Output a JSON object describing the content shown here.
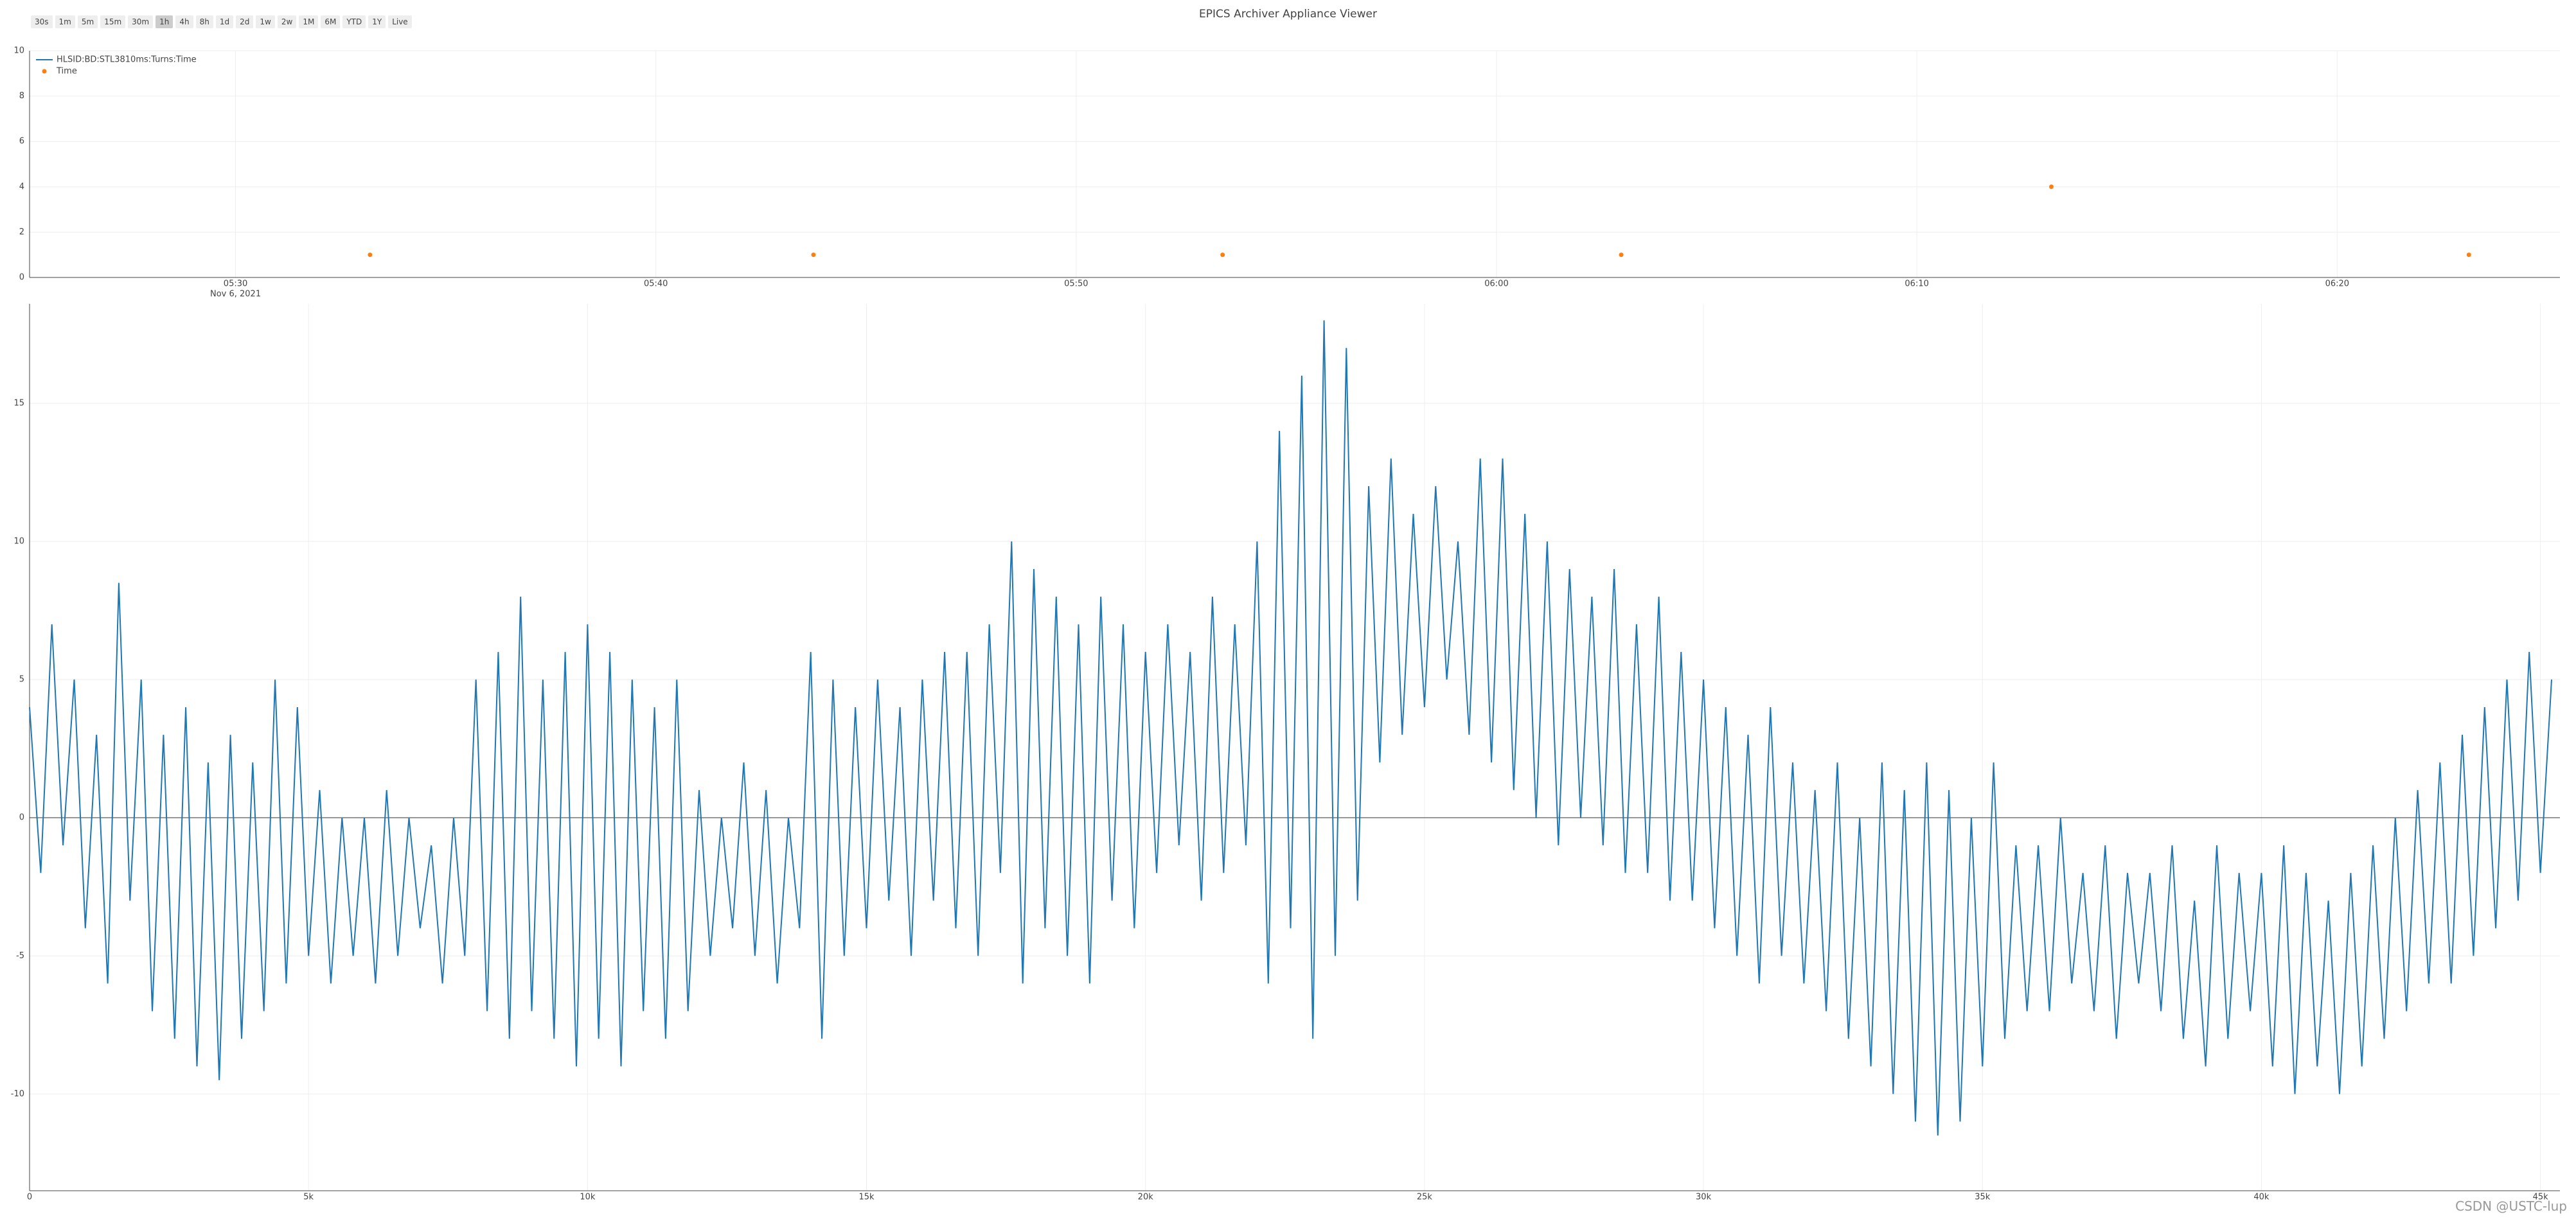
{
  "title": "EPICS Archiver Appliance Viewer",
  "toolbar": {
    "buttons": [
      "30s",
      "1m",
      "5m",
      "15m",
      "30m",
      "1h",
      "4h",
      "8h",
      "1d",
      "2d",
      "1w",
      "2w",
      "1M",
      "6M",
      "YTD",
      "1Y",
      "Live"
    ],
    "selected": "1h"
  },
  "watermark": "CSDN @USTC-lup",
  "chart_data": [
    {
      "type": "scatter",
      "legend": "top-left",
      "grid": true,
      "xlim": [
        "05:25:06",
        "06:25:18"
      ],
      "xticks": [
        "05:30",
        "05:40",
        "05:50",
        "06:00",
        "06:10",
        "06:20"
      ],
      "date_label": "Nov 6, 2021",
      "ylim": [
        0,
        10
      ],
      "yticks": [
        0,
        2,
        4,
        6,
        8,
        10
      ],
      "series": [
        {
          "name": "Time",
          "color": "#ff7f0e",
          "x": [
            "05:33:12",
            "05:43:45",
            "05:53:29",
            "06:02:58",
            "06:13:12",
            "06:23:08"
          ],
          "values": [
            1,
            1,
            1,
            1,
            4,
            1
          ]
        }
      ]
    },
    {
      "type": "line",
      "grid": true,
      "zeroline": true,
      "xlim": [
        0,
        45350
      ],
      "xticks": [
        0,
        {
          "value": 5000,
          "label": "5k"
        },
        {
          "value": 10000,
          "label": "10k"
        },
        {
          "value": 15000,
          "label": "15k"
        },
        {
          "value": 20000,
          "label": "20k"
        },
        {
          "value": 25000,
          "label": "25k"
        },
        {
          "value": 30000,
          "label": "30k"
        },
        {
          "value": 35000,
          "label": "35k"
        },
        {
          "value": 40000,
          "label": "40k"
        },
        {
          "value": 45000,
          "label": "45k"
        }
      ],
      "ylim": [
        -13.5,
        18.6
      ],
      "yticks": [
        -10,
        -5,
        0,
        5,
        10,
        15
      ],
      "series": [
        {
          "name": "HLSID:BD:STL3810ms:Turns:Time",
          "color": "#1f77b4",
          "x": [
            0,
            200,
            400,
            600,
            800,
            1000,
            1200,
            1400,
            1600,
            1800,
            2000,
            2200,
            2400,
            2600,
            2800,
            3000,
            3200,
            3400,
            3600,
            3800,
            4000,
            4200,
            4400,
            4600,
            4800,
            5000,
            5200,
            5400,
            5600,
            5800,
            6000,
            6200,
            6400,
            6600,
            6800,
            7000,
            7200,
            7400,
            7600,
            7800,
            8000,
            8200,
            8400,
            8600,
            8800,
            9000,
            9200,
            9400,
            9600,
            9800,
            10000,
            10200,
            10400,
            10600,
            10800,
            11000,
            11200,
            11400,
            11600,
            11800,
            12000,
            12200,
            12400,
            12600,
            12800,
            13000,
            13200,
            13400,
            13600,
            13800,
            14000,
            14200,
            14400,
            14600,
            14800,
            15000,
            15200,
            15400,
            15600,
            15800,
            16000,
            16200,
            16400,
            16600,
            16800,
            17000,
            17200,
            17400,
            17600,
            17800,
            18000,
            18200,
            18400,
            18600,
            18800,
            19000,
            19200,
            19400,
            19600,
            19800,
            20000,
            20200,
            20400,
            20600,
            20800,
            21000,
            21200,
            21400,
            21600,
            21800,
            22000,
            22200,
            22400,
            22600,
            22800,
            23000,
            23200,
            23400,
            23600,
            23800,
            24000,
            24200,
            24400,
            24600,
            24800,
            25000,
            25200,
            25400,
            25600,
            25800,
            26000,
            26200,
            26400,
            26600,
            26800,
            27000,
            27200,
            27400,
            27600,
            27800,
            28000,
            28200,
            28400,
            28600,
            28800,
            29000,
            29200,
            29400,
            29600,
            29800,
            30000,
            30200,
            30400,
            30600,
            30800,
            31000,
            31200,
            31400,
            31600,
            31800,
            32000,
            32200,
            32400,
            32600,
            32800,
            33000,
            33200,
            33400,
            33600,
            33800,
            34000,
            34200,
            34400,
            34600,
            34800,
            35000,
            35200,
            35400,
            35600,
            35800,
            36000,
            36200,
            36400,
            36600,
            36800,
            37000,
            37200,
            37400,
            37600,
            37800,
            38000,
            38200,
            38400,
            38600,
            38800,
            39000,
            39200,
            39400,
            39600,
            39800,
            40000,
            40200,
            40400,
            40600,
            40800,
            41000,
            41200,
            41400,
            41600,
            41800,
            42000,
            42200,
            42400,
            42600,
            42800,
            43000,
            43200,
            43400,
            43600,
            43800,
            44000,
            44200,
            44400,
            44600,
            44800,
            45000,
            45200
          ],
          "values": [
            4,
            -2,
            7,
            -1,
            5,
            -4,
            3,
            -6,
            8.5,
            -3,
            5,
            -7,
            3,
            -8,
            4,
            -9,
            2,
            -9.5,
            3,
            -8,
            2,
            -7,
            5,
            -6,
            4,
            -5,
            1,
            -6,
            0,
            -5,
            0,
            -6,
            1,
            -5,
            0,
            -4,
            -1,
            -6,
            0,
            -5,
            5,
            -7,
            6,
            -8,
            8,
            -7,
            5,
            -8,
            6,
            -9,
            7,
            -8,
            6,
            -9,
            5,
            -7,
            4,
            -8,
            5,
            -7,
            1,
            -5,
            0,
            -4,
            2,
            -5,
            1,
            -6,
            0,
            -4,
            6,
            -8,
            5,
            -5,
            4,
            -4,
            5,
            -3,
            4,
            -5,
            5,
            -3,
            6,
            -4,
            6,
            -5,
            7,
            -2,
            10,
            -6,
            9,
            -4,
            8,
            -5,
            7,
            -6,
            8,
            -3,
            7,
            -4,
            6,
            -2,
            7,
            -1,
            6,
            -3,
            8,
            -2,
            7,
            -1,
            10,
            -6,
            14,
            -4,
            16,
            -8,
            18,
            -5,
            17,
            -3,
            12,
            2,
            13,
            3,
            11,
            4,
            12,
            5,
            10,
            3,
            13,
            2,
            13,
            1,
            11,
            0,
            10,
            -1,
            9,
            0,
            8,
            -1,
            9,
            -2,
            7,
            -2,
            8,
            -3,
            6,
            -3,
            5,
            -4,
            4,
            -5,
            3,
            -6,
            4,
            -5,
            2,
            -6,
            1,
            -7,
            2,
            -8,
            0,
            -9,
            2,
            -10,
            1,
            -11,
            2,
            -11.5,
            1,
            -11,
            0,
            -9,
            2,
            -8,
            -1,
            -7,
            -1,
            -7,
            0,
            -6,
            -2,
            -7,
            -1,
            -8,
            -2,
            -6,
            -2,
            -7,
            -1,
            -8,
            -3,
            -9,
            -1,
            -8,
            -2,
            -7,
            -2,
            -9,
            -1,
            -10,
            -2,
            -9,
            -3,
            -10,
            -2,
            -9,
            -1,
            -8,
            0,
            -7,
            1,
            -6,
            2,
            -6,
            3,
            -5,
            4,
            -4,
            5,
            -3,
            6,
            -2,
            5
          ]
        }
      ]
    }
  ]
}
